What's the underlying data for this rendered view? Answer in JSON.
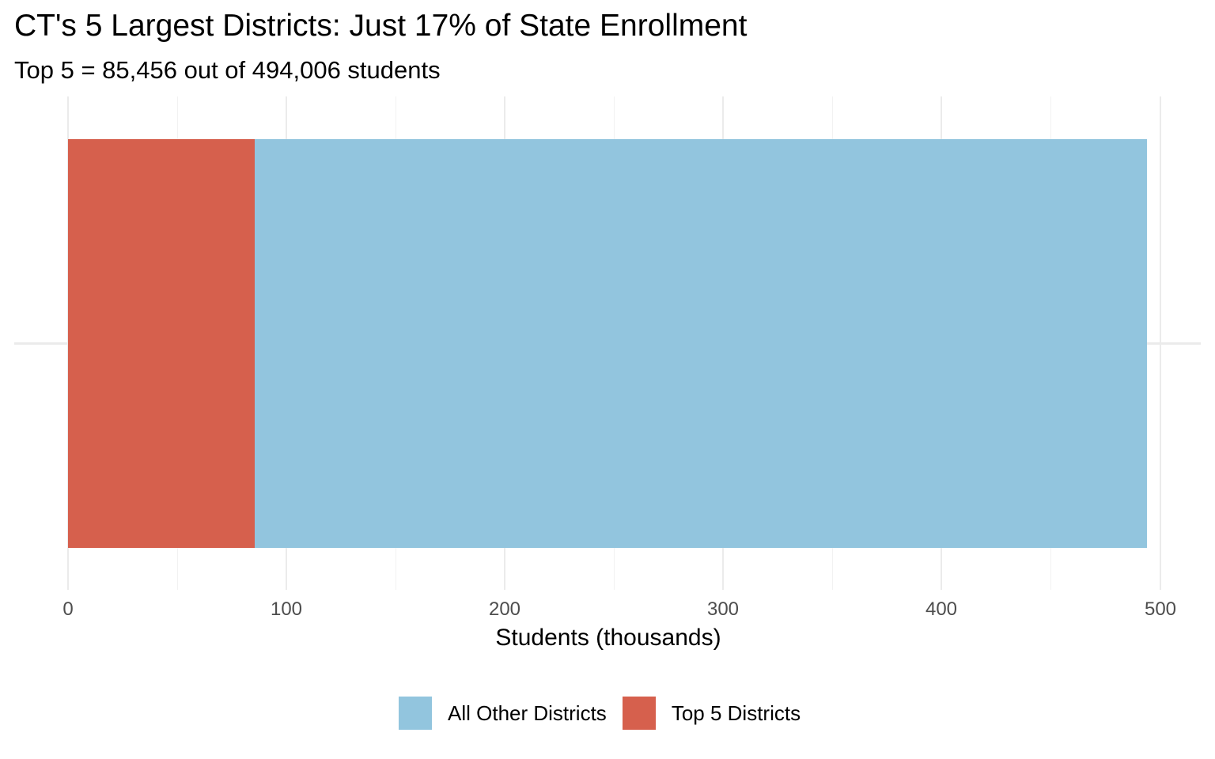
{
  "chart_data": {
    "type": "bar",
    "orientation": "horizontal",
    "stacked": true,
    "title": "CT's 5 Largest Districts: Just 17% of State Enrollment",
    "subtitle": "Top 5 = 85,456 out of 494,006 students",
    "xlabel": "Students (thousands)",
    "ylabel": "",
    "xlim": [
      0,
      500
    ],
    "x_ticks": [
      "0",
      "100",
      "200",
      "300",
      "400",
      "500"
    ],
    "categories": [
      ""
    ],
    "series": [
      {
        "name": "Top 5 Districts",
        "values": [
          85.456
        ],
        "color": "#d6604d"
      },
      {
        "name": "All Other Districts",
        "values": [
          408.55
        ],
        "color": "#92c5de"
      }
    ],
    "total": 494.006,
    "grid": true,
    "legend": {
      "position": "bottom",
      "entries": [
        {
          "label": "All Other Districts",
          "color": "#92c5de"
        },
        {
          "label": "Top 5 Districts",
          "color": "#d6604d"
        }
      ]
    }
  }
}
